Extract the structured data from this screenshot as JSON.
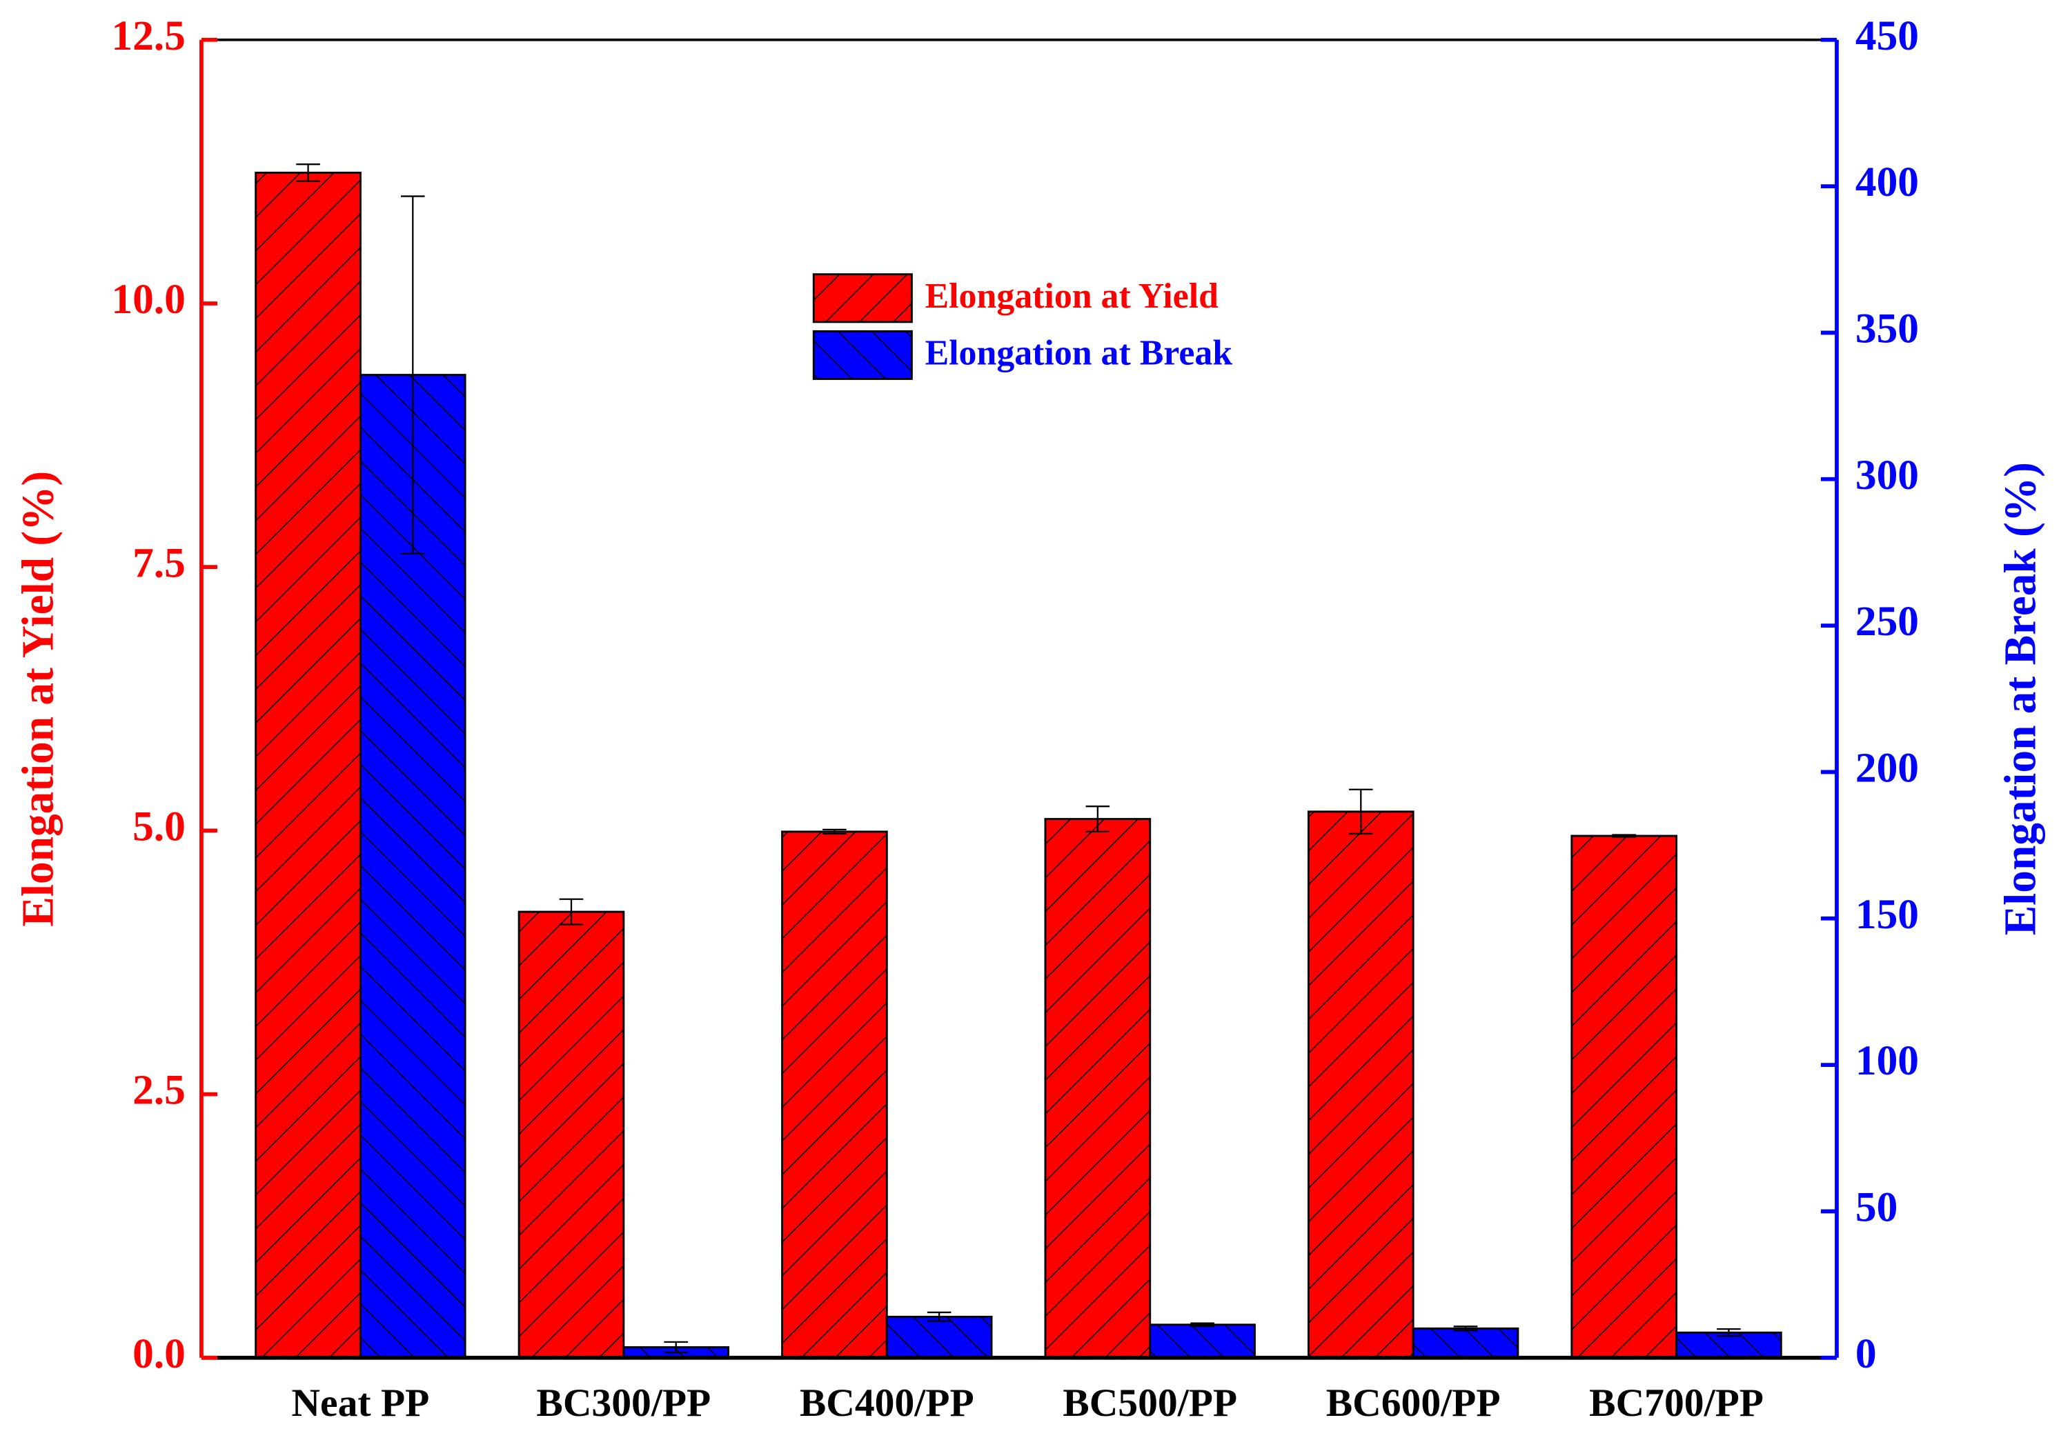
{
  "chart_data": {
    "type": "bar",
    "categories": [
      "Neat PP",
      "BC300/PP",
      "BC400/PP",
      "BC500/PP",
      "BC600/PP",
      "BC700/PP"
    ],
    "ylabel": "Elongation at Yield (%)",
    "y2label": "Elongation at Break (%)",
    "ylim": [
      0,
      12.5
    ],
    "yticks": [
      {
        "value": 0,
        "label": "0.0"
      },
      {
        "value": 2.5,
        "label": "2.5"
      },
      {
        "value": 5,
        "label": "5.0"
      },
      {
        "value": 7.5,
        "label": "7.5"
      },
      {
        "value": 10,
        "label": "10.0"
      },
      {
        "value": 12.5,
        "label": "12.5"
      }
    ],
    "y2lim": [
      0,
      450
    ],
    "y2ticks": [
      0,
      50,
      100,
      150,
      200,
      250,
      300,
      350,
      400,
      450
    ],
    "ycolor": "#ff0000",
    "y2color": "#0000ff",
    "series": [
      {
        "name": "Elongation at Yield",
        "color": "#ff0000",
        "hatch": "/",
        "axis": "y",
        "values": [
          11.24,
          4.23,
          4.99,
          5.11,
          5.18,
          4.95
        ],
        "errors": [
          0.08,
          0.12,
          0.02,
          0.12,
          0.21,
          0.01
        ]
      },
      {
        "name": "Elongation at Break",
        "color": "#0000ff",
        "hatch": "\\",
        "axis": "y2",
        "values": [
          335.6,
          3.6,
          14,
          11.3,
          10,
          8.6
        ],
        "errors": [
          61,
          1.8,
          1.5,
          0.5,
          0.7,
          1.2
        ]
      }
    ]
  }
}
